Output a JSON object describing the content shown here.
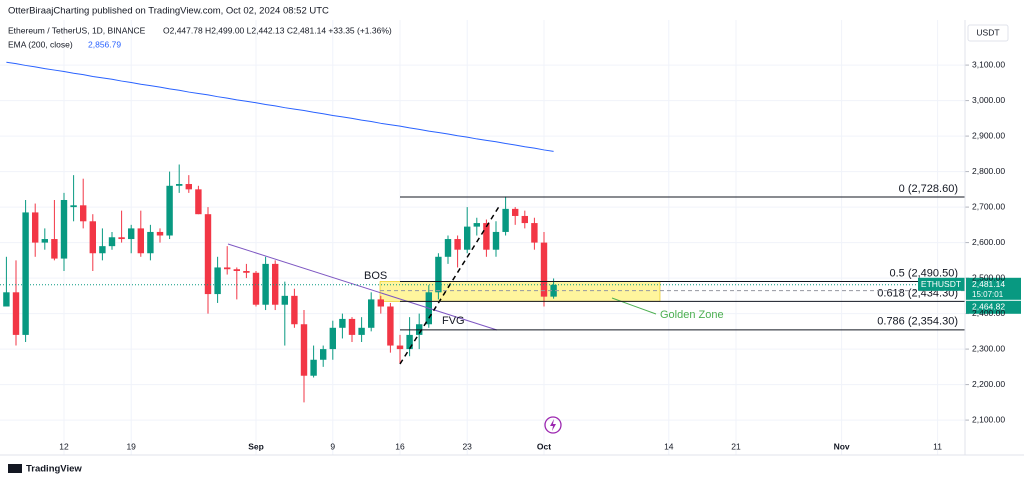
{
  "chart_data": {
    "type": "candlestick",
    "title": "OtterBiraajCharting published on TradingView.com, Oct 02, 2024 08:52 UTC",
    "subtitle": "Ethereum / TetherUS, 1D, BINANCE",
    "ohlc": "O2,447.78 H2,499.00 L2,442.13 C2,481.14 +33.35 (+1.36%)",
    "currency": "USDT",
    "symbol": "ETHUSDT",
    "countdown": "15:07:01",
    "footer": "TradingView",
    "up_color": "#089981",
    "down_color": "#f23645",
    "dates": [
      "2024-08-06",
      "2024-08-07",
      "2024-08-08",
      "2024-08-09",
      "2024-08-10",
      "2024-08-11",
      "2024-08-12",
      "2024-08-13",
      "2024-08-14",
      "2024-08-15",
      "2024-08-16",
      "2024-08-17",
      "2024-08-18",
      "2024-08-19",
      "2024-08-20",
      "2024-08-21",
      "2024-08-22",
      "2024-08-23",
      "2024-08-24",
      "2024-08-25",
      "2024-08-26",
      "2024-08-27",
      "2024-08-28",
      "2024-08-29",
      "2024-08-30",
      "2024-08-31",
      "2024-09-01",
      "2024-09-02",
      "2024-09-03",
      "2024-09-04",
      "2024-09-05",
      "2024-09-06",
      "2024-09-07",
      "2024-09-08",
      "2024-09-09",
      "2024-09-10",
      "2024-09-11",
      "2024-09-12",
      "2024-09-13",
      "2024-09-14",
      "2024-09-15",
      "2024-09-16",
      "2024-09-17",
      "2024-09-18",
      "2024-09-19",
      "2024-09-20",
      "2024-09-21",
      "2024-09-22",
      "2024-09-23",
      "2024-09-24",
      "2024-09-25",
      "2024-09-26",
      "2024-09-27",
      "2024-09-28",
      "2024-09-29",
      "2024-09-30",
      "2024-10-01",
      "2024-10-02"
    ],
    "open": [
      2420,
      2460,
      2340,
      2685,
      2600,
      2610,
      2555,
      2700,
      2705,
      2660,
      2570,
      2590,
      2615,
      2610,
      2640,
      2570,
      2630,
      2620,
      2760,
      2765,
      2750,
      2680,
      2455,
      2530,
      2525,
      2520,
      2515,
      2425,
      2540,
      2425,
      2450,
      2370,
      2225,
      2270,
      2300,
      2360,
      2385,
      2340,
      2360,
      2440,
      2420,
      2310,
      2300,
      2340,
      2370,
      2460,
      2560,
      2610,
      2580,
      2645,
      2655,
      2580,
      2630,
      2695,
      2675,
      2655,
      2600,
      2447.78
    ],
    "high": [
      2560,
      2550,
      2720,
      2710,
      2640,
      2720,
      2740,
      2790,
      2780,
      2680,
      2640,
      2630,
      2690,
      2650,
      2690,
      2650,
      2640,
      2800,
      2820,
      2790,
      2760,
      2700,
      2560,
      2590,
      2530,
      2540,
      2520,
      2560,
      2550,
      2490,
      2470,
      2410,
      2310,
      2310,
      2380,
      2400,
      2390,
      2390,
      2460,
      2450,
      2430,
      2340,
      2390,
      2400,
      2480,
      2570,
      2620,
      2620,
      2700,
      2670,
      2665,
      2660,
      2730,
      2700,
      2690,
      2670,
      2630,
      2499
    ],
    "low": [
      2420,
      2310,
      2320,
      2560,
      2580,
      2550,
      2520,
      2660,
      2640,
      2520,
      2550,
      2580,
      2600,
      2570,
      2560,
      2550,
      2600,
      2610,
      2740,
      2740,
      2680,
      2400,
      2430,
      2510,
      2440,
      2500,
      2420,
      2410,
      2410,
      2310,
      2360,
      2150,
      2220,
      2250,
      2270,
      2330,
      2320,
      2320,
      2350,
      2400,
      2290,
      2260,
      2280,
      2300,
      2360,
      2440,
      2540,
      2530,
      2570,
      2620,
      2560,
      2560,
      2620,
      2650,
      2640,
      2580,
      2420,
      2442.13
    ],
    "close": [
      2460,
      2340,
      2685,
      2600,
      2610,
      2555,
      2720,
      2705,
      2660,
      2570,
      2590,
      2615,
      2610,
      2640,
      2570,
      2630,
      2620,
      2760,
      2765,
      2750,
      2680,
      2455,
      2530,
      2525,
      2520,
      2515,
      2425,
      2540,
      2425,
      2450,
      2370,
      2225,
      2270,
      2300,
      2360,
      2385,
      2340,
      2360,
      2440,
      2420,
      2310,
      2300,
      2340,
      2370,
      2460,
      2560,
      2610,
      2580,
      2645,
      2655,
      2580,
      2630,
      2695,
      2675,
      2655,
      2600,
      2447.78,
      2481.14
    ],
    "ema": {
      "name": "EMA (200, close)",
      "color": "#2962ff",
      "last_label": "2,856.79",
      "values": [
        3108,
        3104,
        3099,
        3095,
        3090,
        3086,
        3082,
        3077,
        3073,
        3068,
        3064,
        3060,
        3055,
        3051,
        3046,
        3042,
        3038,
        3033,
        3029,
        3024,
        3020,
        3016,
        3011,
        3007,
        3002,
        2998,
        2994,
        2989,
        2985,
        2980,
        2976,
        2972,
        2967,
        2963,
        2958,
        2954,
        2950,
        2945,
        2941,
        2936,
        2932,
        2928,
        2923,
        2919,
        2914,
        2910,
        2906,
        2901,
        2897,
        2892,
        2888,
        2884,
        2879,
        2875,
        2870,
        2866,
        2861,
        2856.79
      ]
    },
    "ylim": [
      2001.7,
      3227
    ],
    "yticks": [
      {
        "value": 2100,
        "label": "2,100.00"
      },
      {
        "value": 2200,
        "label": "2,200.00"
      },
      {
        "value": 2300,
        "label": "2,300.00"
      },
      {
        "value": 2400,
        "label": "2,400.00"
      },
      {
        "value": 2500,
        "label": "2,500.00"
      },
      {
        "value": 2600,
        "label": "2,600.00"
      },
      {
        "value": 2700,
        "label": "2,700.00"
      },
      {
        "value": 2800,
        "label": "2,800.00"
      },
      {
        "value": 2900,
        "label": "2,900.00"
      },
      {
        "value": 3000,
        "label": "3,000.00"
      },
      {
        "value": 3100,
        "label": "3,100.00"
      }
    ],
    "xticks": [
      {
        "value": "2024-08-12",
        "label": "12"
      },
      {
        "value": "2024-08-19",
        "label": "19"
      },
      {
        "value": "2024-09-01",
        "label": "Sep"
      },
      {
        "value": "2024-09-09",
        "label": "9"
      },
      {
        "value": "2024-09-16",
        "label": "16"
      },
      {
        "value": "2024-09-23",
        "label": "23"
      },
      {
        "value": "2024-10-01",
        "label": "Oct"
      },
      {
        "value": "2024-10-14",
        "label": "14"
      },
      {
        "value": "2024-10-21",
        "label": "21"
      },
      {
        "value": "2024-11-01",
        "label": "Nov"
      },
      {
        "value": "2024-11-11",
        "label": "11"
      }
    ],
    "fib_levels": [
      {
        "value": 2728.6,
        "label": "0 (2,728.60)"
      },
      {
        "value": 2490.5,
        "label": "0.5 (2,490.50)"
      },
      {
        "value": 2434.3,
        "label": "0.618 (2,434.30)"
      },
      {
        "value": 2354.3,
        "label": "0.786 (2,354.30)"
      }
    ],
    "golden_zone": {
      "label": "Golden Zone",
      "color": "#fff59d"
    },
    "annotations": [
      "BOS",
      "FVG"
    ],
    "price_tags": [
      {
        "value": 2481.14,
        "label": "2,481.14"
      },
      {
        "value": 2464.82,
        "label": "2,464.82"
      }
    ]
  }
}
